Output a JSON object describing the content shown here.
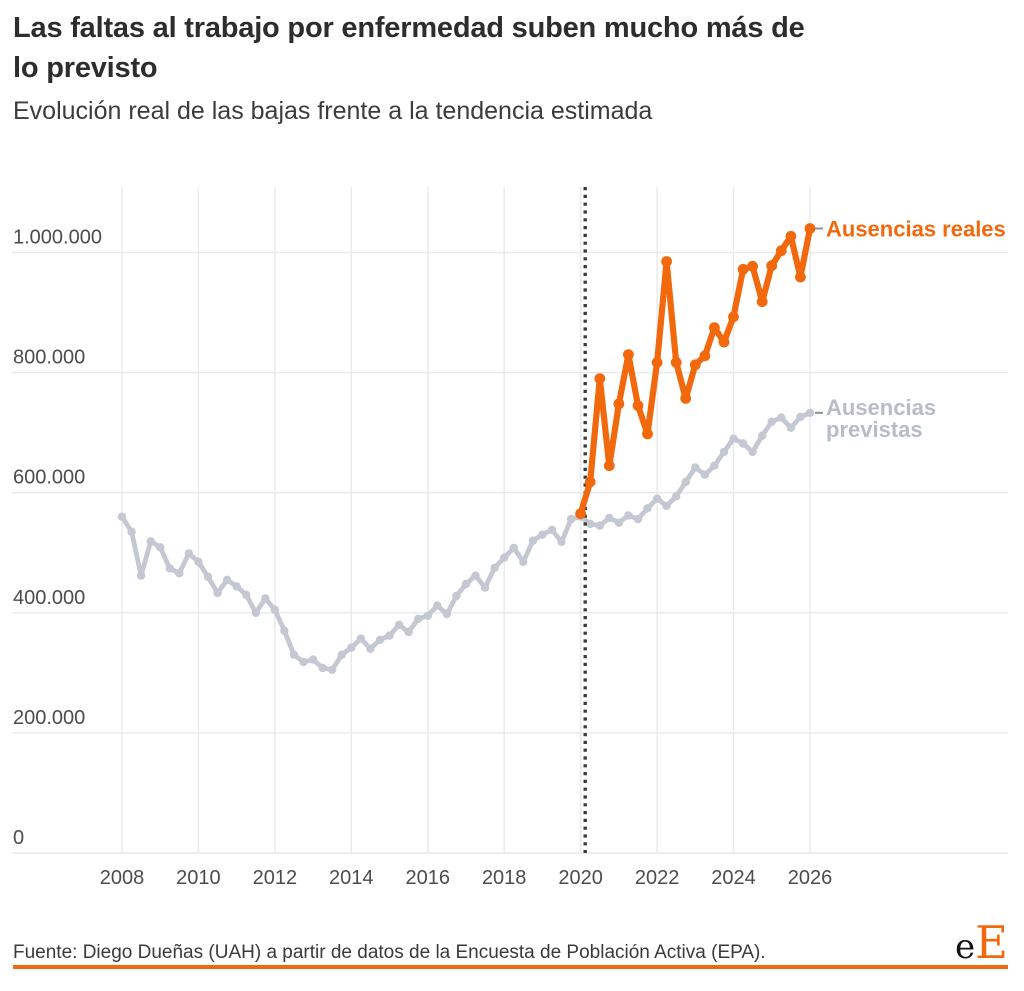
{
  "header": {
    "title_lines": [
      "Las faltas al trabajo por enfermedad suben mucho más de",
      "lo previsto"
    ],
    "title": "Las faltas al trabajo por enfermedad suben mucho más de lo previsto",
    "subtitle": "Evolución real de las bajas frente a la tendencia estimada"
  },
  "chart_data": {
    "type": "line",
    "title": "Las faltas al trabajo por enfermedad suben mucho más de lo previsto",
    "subtitle": "Evolución real de las bajas frente a la tendencia estimada",
    "grid": true,
    "legend_position": "right-inline",
    "x_axis": {
      "ticks": [
        2008,
        2010,
        2012,
        2014,
        2016,
        2018,
        2020,
        2022,
        2024,
        2026
      ],
      "range": [
        2005.2,
        2026.6
      ]
    },
    "y_axis": {
      "ticks": [
        0,
        200000,
        400000,
        600000,
        800000,
        1000000
      ],
      "tick_labels": [
        "0",
        "200.000",
        "400.000",
        "600.000",
        "800.000",
        "1.000.000"
      ],
      "range": [
        0,
        1110000
      ]
    },
    "event_line": {
      "x": 2020.12,
      "style": "dotted",
      "color": "#3a3a3a"
    },
    "series": [
      {
        "id": "previstas",
        "name": "Ausencias previstas",
        "label_lines": [
          "Ausencias",
          "previstas"
        ],
        "color": "#c3c8d2",
        "label_color": "#b6bcc8",
        "line_width": 4.8,
        "marker_radius": 4.2,
        "start": 2008.0,
        "step": 0.25,
        "values": [
          560000,
          535000,
          462000,
          519000,
          509000,
          474000,
          466000,
          499000,
          485000,
          460000,
          433000,
          455000,
          444000,
          430000,
          400000,
          424000,
          405000,
          370000,
          330000,
          318000,
          322000,
          308000,
          305000,
          330000,
          342000,
          357000,
          340000,
          355000,
          362000,
          380000,
          368000,
          390000,
          395000,
          412000,
          398000,
          428000,
          448000,
          462000,
          442000,
          475000,
          492000,
          508000,
          485000,
          520000,
          530000,
          538000,
          518000,
          556000,
          560000,
          548000,
          545000,
          558000,
          550000,
          562000,
          556000,
          574000,
          590000,
          578000,
          594000,
          618000,
          642000,
          630000,
          645000,
          668000,
          690000,
          682000,
          668000,
          695000,
          718000,
          725000,
          708000,
          726000,
          733000
        ]
      },
      {
        "id": "reales",
        "name": "Ausencias reales",
        "label_lines": [
          "Ausencias reales"
        ],
        "color": "#f2690d",
        "label_color": "#f2690d",
        "line_width": 6.2,
        "marker_radius": 5.4,
        "start": 2020.0,
        "step": 0.25,
        "values": [
          565000,
          618000,
          790000,
          645000,
          748000,
          830000,
          745000,
          698000,
          817000,
          985000,
          817000,
          757000,
          813000,
          828000,
          875000,
          851000,
          893000,
          972000,
          977000,
          918000,
          978000,
          1003000,
          1027000,
          959000,
          1040000
        ]
      }
    ]
  },
  "footer": {
    "source": "Fuente: Diego Dueñas (UAH) a partir de datos de la Encuesta de Población Activa (EPA).",
    "logo": {
      "black": "e",
      "orange": "E"
    }
  },
  "colors": {
    "accent_orange": "#f2690d",
    "line_gray": "#c3c8d2",
    "gridline": "#e8e9ec",
    "text_dark": "#2d2d2d",
    "axis_text": "#4c4c4c"
  }
}
